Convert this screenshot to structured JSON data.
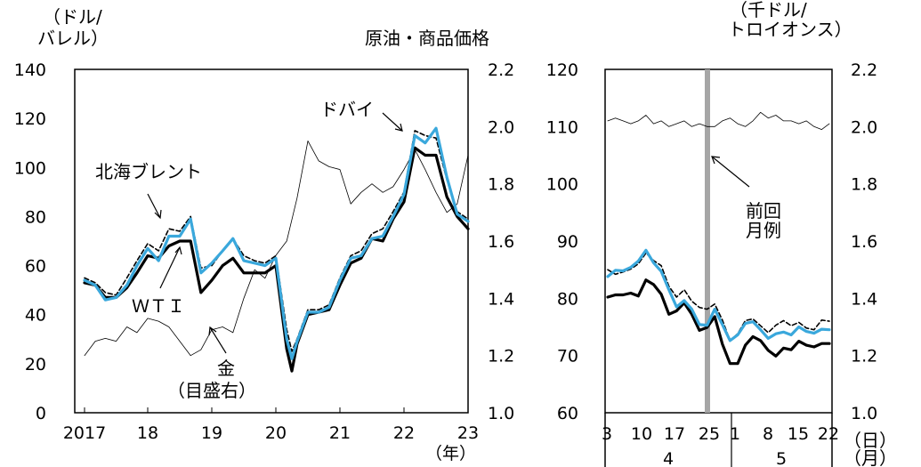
{
  "title": "原油・商品価格",
  "left_panel": {
    "y_unit_line1": "（ドル/",
    "y_unit_line2": "バレル）",
    "x_unit": "（年）",
    "annotations": {
      "dubai": "ドバイ",
      "brent": "北海ブレント",
      "wti": "ＷＴＩ",
      "gold_line1": "金",
      "gold_line2": "（目盛右）"
    }
  },
  "right_panel": {
    "y_unit_line1": "（千ドル/",
    "y_unit_line2": "トロイオンス）",
    "x_unit_day": "（日）",
    "x_unit_month": "（月）",
    "previous_line1": "前回",
    "previous_line2": "月例"
  },
  "colors": {
    "dubai": "#3aa8dc",
    "wti": "#000000",
    "brent": "#000000",
    "gold": "#000000",
    "previous_marker": "#a6a6a6"
  },
  "chart_data": [
    {
      "type": "line",
      "x_axis": {
        "ticks": [
          "2017",
          "18",
          "19",
          "20",
          "21",
          "22",
          "23"
        ]
      },
      "y_left": {
        "ylim": [
          0,
          140
        ],
        "ticks": [
          "0",
          "20",
          "40",
          "60",
          "80",
          "100",
          "120",
          "140"
        ]
      },
      "y_right": {
        "ylim": [
          1.0,
          2.2
        ],
        "ticks": [
          "1.0",
          "1.2",
          "1.4",
          "1.6",
          "1.8",
          "2.0",
          "2.2"
        ]
      },
      "series": [
        {
          "name": "北海ブレント",
          "axis": "left",
          "style": "dashed",
          "x": [
            2017.0,
            2017.17,
            2017.33,
            2017.5,
            2017.67,
            2017.83,
            2018.0,
            2018.17,
            2018.33,
            2018.5,
            2018.67,
            2018.83,
            2019.0,
            2019.17,
            2019.33,
            2019.5,
            2019.67,
            2019.83,
            2020.0,
            2020.17,
            2020.25,
            2020.33,
            2020.5,
            2020.67,
            2020.83,
            2021.0,
            2021.17,
            2021.33,
            2021.5,
            2021.67,
            2021.83,
            2022.0,
            2022.17,
            2022.33,
            2022.5,
            2022.67,
            2022.83,
            2023.0
          ],
          "y": [
            55,
            53,
            49,
            48,
            55,
            62,
            69,
            66,
            75,
            74,
            80,
            59,
            60,
            66,
            71,
            64,
            62,
            61,
            64,
            34,
            25,
            30,
            42,
            42,
            44,
            55,
            64,
            66,
            73,
            75,
            82,
            90,
            115,
            113,
            112,
            95,
            82,
            79
          ]
        },
        {
          "name": "ＷＴＩ",
          "axis": "left",
          "style": "solid",
          "x": [
            2017.0,
            2017.17,
            2017.33,
            2017.5,
            2017.67,
            2017.83,
            2018.0,
            2018.17,
            2018.33,
            2018.5,
            2018.67,
            2018.83,
            2019.0,
            2019.17,
            2019.33,
            2019.5,
            2019.67,
            2019.83,
            2020.0,
            2020.17,
            2020.25,
            2020.33,
            2020.5,
            2020.67,
            2020.83,
            2021.0,
            2021.17,
            2021.33,
            2021.5,
            2021.67,
            2021.83,
            2022.0,
            2022.17,
            2022.33,
            2022.5,
            2022.67,
            2022.83,
            2023.0
          ],
          "y": [
            53,
            52,
            47,
            47,
            51,
            57,
            64,
            63,
            68,
            70,
            70,
            49,
            54,
            60,
            63,
            57,
            57,
            57,
            60,
            26,
            17,
            28,
            40,
            41,
            42,
            52,
            61,
            63,
            71,
            70,
            79,
            86,
            108,
            105,
            105,
            88,
            80,
            75
          ]
        },
        {
          "name": "ドバイ",
          "axis": "left",
          "style": "solid",
          "x": [
            2017.0,
            2017.17,
            2017.33,
            2017.5,
            2017.67,
            2017.83,
            2018.0,
            2018.17,
            2018.33,
            2018.5,
            2018.67,
            2018.83,
            2019.0,
            2019.17,
            2019.33,
            2019.5,
            2019.67,
            2019.83,
            2020.0,
            2020.17,
            2020.25,
            2020.33,
            2020.5,
            2020.67,
            2020.83,
            2021.0,
            2021.17,
            2021.33,
            2021.5,
            2021.67,
            2021.83,
            2022.0,
            2022.17,
            2022.33,
            2022.5,
            2022.67,
            2022.83,
            2023.0
          ],
          "y": [
            54,
            52,
            46,
            47,
            52,
            60,
            67,
            62,
            72,
            72,
            79,
            57,
            61,
            66,
            71,
            62,
            61,
            60,
            63,
            30,
            22,
            29,
            41,
            41,
            43,
            54,
            63,
            64,
            71,
            72,
            80,
            89,
            113,
            110,
            116,
            96,
            81,
            78
          ]
        },
        {
          "name": "金",
          "axis": "right",
          "style": "thin",
          "x": [
            2017.0,
            2017.17,
            2017.33,
            2017.5,
            2017.67,
            2017.83,
            2018.0,
            2018.17,
            2018.33,
            2018.5,
            2018.67,
            2018.83,
            2019.0,
            2019.17,
            2019.33,
            2019.5,
            2019.67,
            2019.83,
            2020.0,
            2020.17,
            2020.33,
            2020.5,
            2020.67,
            2020.83,
            2021.0,
            2021.17,
            2021.33,
            2021.5,
            2021.67,
            2021.83,
            2022.0,
            2022.17,
            2022.33,
            2022.5,
            2022.67,
            2022.83,
            2023.0
          ],
          "y": [
            1.2,
            1.25,
            1.26,
            1.25,
            1.3,
            1.28,
            1.33,
            1.32,
            1.3,
            1.25,
            1.2,
            1.22,
            1.29,
            1.3,
            1.28,
            1.4,
            1.5,
            1.47,
            1.55,
            1.6,
            1.75,
            1.95,
            1.88,
            1.86,
            1.85,
            1.73,
            1.77,
            1.8,
            1.77,
            1.79,
            1.85,
            1.92,
            1.85,
            1.77,
            1.7,
            1.73,
            1.9
          ]
        }
      ]
    },
    {
      "type": "line",
      "x_axis": {
        "day_ticks": [
          "3",
          "10",
          "17",
          "25",
          "1",
          "8",
          "15",
          "22"
        ],
        "months": [
          "4",
          "5"
        ]
      },
      "y_left": {
        "ylim": [
          60,
          120
        ],
        "ticks": [
          "60",
          "70",
          "80",
          "90",
          "100",
          "110",
          "120"
        ]
      },
      "y_right": {
        "ylim": [
          1.0,
          2.2
        ],
        "ticks": [
          "1.0",
          "1.2",
          "1.4",
          "1.6",
          "1.8",
          "2.0",
          "2.2"
        ]
      },
      "series": [
        {
          "name": "北海ブレント",
          "axis": "left",
          "style": "dashed",
          "y": [
            85.0,
            84.2,
            84.6,
            85.1,
            86.0,
            87.9,
            86.6,
            85.7,
            82.1,
            80.2,
            81.5,
            79.5,
            78.4,
            78.1,
            79.0,
            76.2,
            72.6,
            73.8,
            76.1,
            76.4,
            75.2,
            74.0,
            75.3,
            76.1,
            75.2,
            75.8,
            74.8,
            74.5,
            76.2,
            76.0
          ]
        },
        {
          "name": "ＷＴＩ",
          "axis": "left",
          "style": "solid",
          "y": [
            80.2,
            80.6,
            80.6,
            80.9,
            80.4,
            83.2,
            82.4,
            80.7,
            77.2,
            77.8,
            79.2,
            77.2,
            74.4,
            74.9,
            76.8,
            72.0,
            68.6,
            68.6,
            71.8,
            73.3,
            72.6,
            70.9,
            69.9,
            71.3,
            71.0,
            72.5,
            71.8,
            71.5,
            72.1,
            72.1
          ]
        },
        {
          "name": "ドバイ",
          "axis": "left",
          "style": "solid",
          "y": [
            83.8,
            84.9,
            84.8,
            85.4,
            86.5,
            88.4,
            86.2,
            84.7,
            81.5,
            78.5,
            79.6,
            78.1,
            75.4,
            75.3,
            78.1,
            75.4,
            72.6,
            73.6,
            75.6,
            75.9,
            74.5,
            73.0,
            73.8,
            74.1,
            73.6,
            75.0,
            74.2,
            73.9,
            74.6,
            74.5
          ]
        },
        {
          "name": "金",
          "axis": "right",
          "style": "thin",
          "y": [
            2.02,
            2.03,
            2.02,
            2.01,
            2.02,
            2.04,
            2.01,
            2.02,
            2.0,
            2.01,
            2.02,
            2.0,
            2.01,
            2.0,
            2.0,
            2.02,
            2.03,
            2.01,
            2.0,
            2.02,
            2.05,
            2.03,
            2.04,
            2.02,
            2.02,
            2.01,
            2.02,
            2.0,
            1.99,
            2.01
          ]
        }
      ]
    }
  ]
}
